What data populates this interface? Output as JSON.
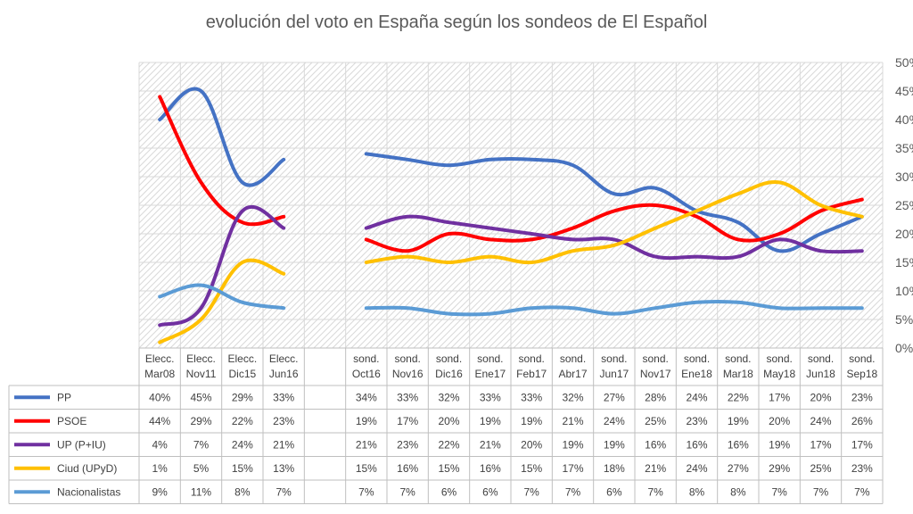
{
  "chart_data": {
    "type": "line",
    "title": "evolución del voto en España según los sondeos de El Español",
    "ylim": [
      0,
      50
    ],
    "y_ticks": [
      "0%",
      "5%",
      "10%",
      "15%",
      "20%",
      "25%",
      "30%",
      "35%",
      "40%",
      "45%",
      "50%"
    ],
    "grid": true,
    "legend": "table-left",
    "categories": [
      [
        "Elecc.",
        "Mar08"
      ],
      [
        "Elecc.",
        "Nov11"
      ],
      [
        "Elecc.",
        "Dic15"
      ],
      [
        "Elecc.",
        "Jun16"
      ],
      [
        "",
        ""
      ],
      [
        "sond.",
        "Oct16"
      ],
      [
        "sond.",
        "Nov16"
      ],
      [
        "sond.",
        "Dic16"
      ],
      [
        "sond.",
        "Ene17"
      ],
      [
        "sond.",
        "Feb17"
      ],
      [
        "sond.",
        "Abr17"
      ],
      [
        "sond.",
        "Jun17"
      ],
      [
        "sond.",
        "Nov17"
      ],
      [
        "sond.",
        "Ene18"
      ],
      [
        "sond.",
        "Mar18"
      ],
      [
        "sond.",
        "May18"
      ],
      [
        "sond.",
        "Jun18"
      ],
      [
        "sond.",
        "Sep18"
      ]
    ],
    "series": [
      {
        "name": "PP",
        "color": "#4472c4",
        "values": [
          40,
          45,
          29,
          33,
          null,
          34,
          33,
          32,
          33,
          33,
          32,
          27,
          28,
          24,
          22,
          17,
          20,
          23
        ],
        "labels": [
          "40%",
          "45%",
          "29%",
          "33%",
          "",
          "34%",
          "33%",
          "32%",
          "33%",
          "33%",
          "32%",
          "27%",
          "28%",
          "24%",
          "22%",
          "17%",
          "20%",
          "23%"
        ]
      },
      {
        "name": "PSOE",
        "color": "#ff0000",
        "values": [
          44,
          29,
          22,
          23,
          null,
          19,
          17,
          20,
          19,
          19,
          21,
          24,
          25,
          23,
          19,
          20,
          24,
          26
        ],
        "labels": [
          "44%",
          "29%",
          "22%",
          "23%",
          "",
          "19%",
          "17%",
          "20%",
          "19%",
          "19%",
          "21%",
          "24%",
          "25%",
          "23%",
          "19%",
          "20%",
          "24%",
          "26%"
        ]
      },
      {
        "name": "UP (P+IU)",
        "color": "#7030a0",
        "values": [
          4,
          7,
          24,
          21,
          null,
          21,
          23,
          22,
          21,
          20,
          19,
          19,
          16,
          16,
          16,
          19,
          17,
          17
        ],
        "labels": [
          "4%",
          "7%",
          "24%",
          "21%",
          "",
          "21%",
          "23%",
          "22%",
          "21%",
          "20%",
          "19%",
          "19%",
          "16%",
          "16%",
          "16%",
          "19%",
          "17%",
          "17%"
        ]
      },
      {
        "name": "Ciud (UPyD)",
        "color": "#ffc000",
        "values": [
          1,
          5,
          15,
          13,
          null,
          15,
          16,
          15,
          16,
          15,
          17,
          18,
          21,
          24,
          27,
          29,
          25,
          23
        ],
        "labels": [
          "1%",
          "5%",
          "15%",
          "13%",
          "",
          "15%",
          "16%",
          "15%",
          "16%",
          "15%",
          "17%",
          "18%",
          "21%",
          "24%",
          "27%",
          "29%",
          "25%",
          "23%"
        ]
      },
      {
        "name": "Nacionalistas",
        "color": "#5b9bd5",
        "values": [
          9,
          11,
          8,
          7,
          null,
          7,
          7,
          6,
          6,
          7,
          7,
          6,
          7,
          8,
          8,
          7,
          7,
          7
        ],
        "labels": [
          "9%",
          "11%",
          "8%",
          "7%",
          "",
          "7%",
          "7%",
          "6%",
          "6%",
          "7%",
          "7%",
          "6%",
          "7%",
          "8%",
          "8%",
          "7%",
          "7%",
          "7%"
        ]
      }
    ]
  }
}
